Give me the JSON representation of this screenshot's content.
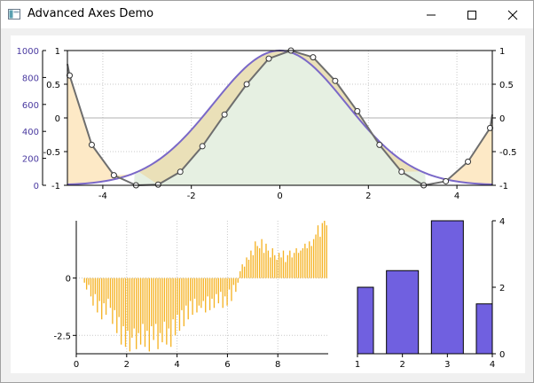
{
  "window": {
    "title": "Advanced Axes Demo",
    "controls": {
      "minimize": "minimize-icon",
      "maximize": "maximize-icon",
      "close": "close-icon"
    }
  },
  "colors": {
    "curve_purple": "#7a68c8",
    "curve_gray": "#6e6e6e",
    "fill_orange": "#fde9c6",
    "fill_green": "#e6f0e2",
    "fill_olive": "#eae0b8",
    "bar_orange": "#f5b325",
    "bar_purple": "#7060e0",
    "left_axis_text": "#4a3aa0"
  },
  "chart_data": [
    {
      "type": "line",
      "title": "",
      "xlabel": "",
      "ylabel": "",
      "xlim": [
        -4.8,
        4.8
      ],
      "ylim": [
        -1,
        1
      ],
      "x_ticks": [
        "-4",
        "-2",
        "0",
        "2",
        "4"
      ],
      "y_ticks_left_inner": [
        "-1",
        "-0.5",
        "0",
        "0.5",
        "1"
      ],
      "y_ticks_right": [
        "-1",
        "-0.5",
        "0",
        "0.5",
        "1"
      ],
      "secondary_left_axis": {
        "ylim": [
          0,
          1000
        ],
        "ticks": [
          "0",
          "200",
          "400",
          "600",
          "800",
          "1000"
        ]
      },
      "grid": true,
      "series": [
        {
          "kind": "gaussian",
          "amplitude": 1,
          "sigma": 1.5,
          "offset_from_min": -1
        },
        {
          "kind": "markers",
          "x": [
            -4.75,
            -4.25,
            -3.75,
            -3.25,
            -2.75,
            -2.25,
            -1.75,
            -1.25,
            -0.75,
            -0.25,
            0.25,
            0.75,
            1.25,
            1.75,
            2.25,
            2.75,
            3.25,
            3.75,
            4.25,
            4.75
          ],
          "y": [
            0.63,
            -0.4,
            -0.85,
            -1.0,
            -0.99,
            -0.8,
            -0.42,
            0.05,
            0.5,
            0.88,
            1.0,
            0.9,
            0.55,
            0.1,
            -0.4,
            -0.8,
            -1.0,
            -0.94,
            -0.65,
            -0.15
          ]
        }
      ]
    },
    {
      "type": "bar",
      "title": "",
      "xlabel": "",
      "ylabel": "",
      "xlim": [
        0,
        10
      ],
      "ylim": [
        -3.3,
        2.5
      ],
      "x_ticks": [
        "0",
        "2",
        "4",
        "6",
        "8"
      ],
      "y_ticks": [
        "0",
        "-2.5"
      ],
      "grid": true,
      "values": [
        -0.2,
        -0.5,
        -0.3,
        -0.8,
        -1.2,
        -0.7,
        -1.5,
        -1.0,
        -1.8,
        -1.1,
        -1.6,
        -0.9,
        -1.3,
        -2.0,
        -1.4,
        -2.4,
        -1.7,
        -2.9,
        -2.1,
        -3.0,
        -2.3,
        -3.2,
        -2.6,
        -2.2,
        -3.1,
        -2.4,
        -2.9,
        -2.0,
        -3.0,
        -2.3,
        -3.2,
        -2.1,
        -2.7,
        -2.0,
        -3.1,
        -2.4,
        -2.8,
        -1.9,
        -2.9,
        -2.2,
        -3.0,
        -1.8,
        -2.5,
        -1.6,
        -2.3,
        -1.4,
        -2.1,
        -1.2,
        -1.8,
        -1.0,
        -1.6,
        -0.9,
        -1.5,
        -1.2,
        -1.3,
        -1.0,
        -1.5,
        -0.8,
        -1.4,
        -0.9,
        -1.3,
        -0.7,
        -1.1,
        -0.6,
        -1.3,
        -0.8,
        -1.2,
        -0.5,
        -1.0,
        -0.3,
        -0.6,
        -0.2,
        0.3,
        0.6,
        0.5,
        0.9,
        0.8,
        1.2,
        1.0,
        1.6,
        1.4,
        1.3,
        1.7,
        1.1,
        1.5,
        1.2,
        0.9,
        1.3,
        1.0,
        0.8,
        1.1,
        0.9,
        1.2,
        0.7,
        1.0,
        1.2,
        0.9,
        1.1,
        1.3,
        1.1,
        1.2,
        1.3,
        1.5,
        1.3,
        1.6,
        1.4,
        1.7,
        1.9,
        2.3,
        1.8,
        2.4,
        2.5,
        2.3
      ]
    },
    {
      "type": "bar",
      "title": "",
      "xlabel": "",
      "ylabel": "",
      "categories": [
        "1",
        "2",
        "3",
        "4"
      ],
      "values": [
        2.0,
        2.5,
        4.0,
        1.5
      ],
      "ylim": [
        0,
        4
      ],
      "x_ticks": [
        "1",
        "2",
        "3",
        "4"
      ],
      "y_ticks": [
        "0",
        "2",
        "4"
      ],
      "y_axis_side": "right"
    }
  ]
}
